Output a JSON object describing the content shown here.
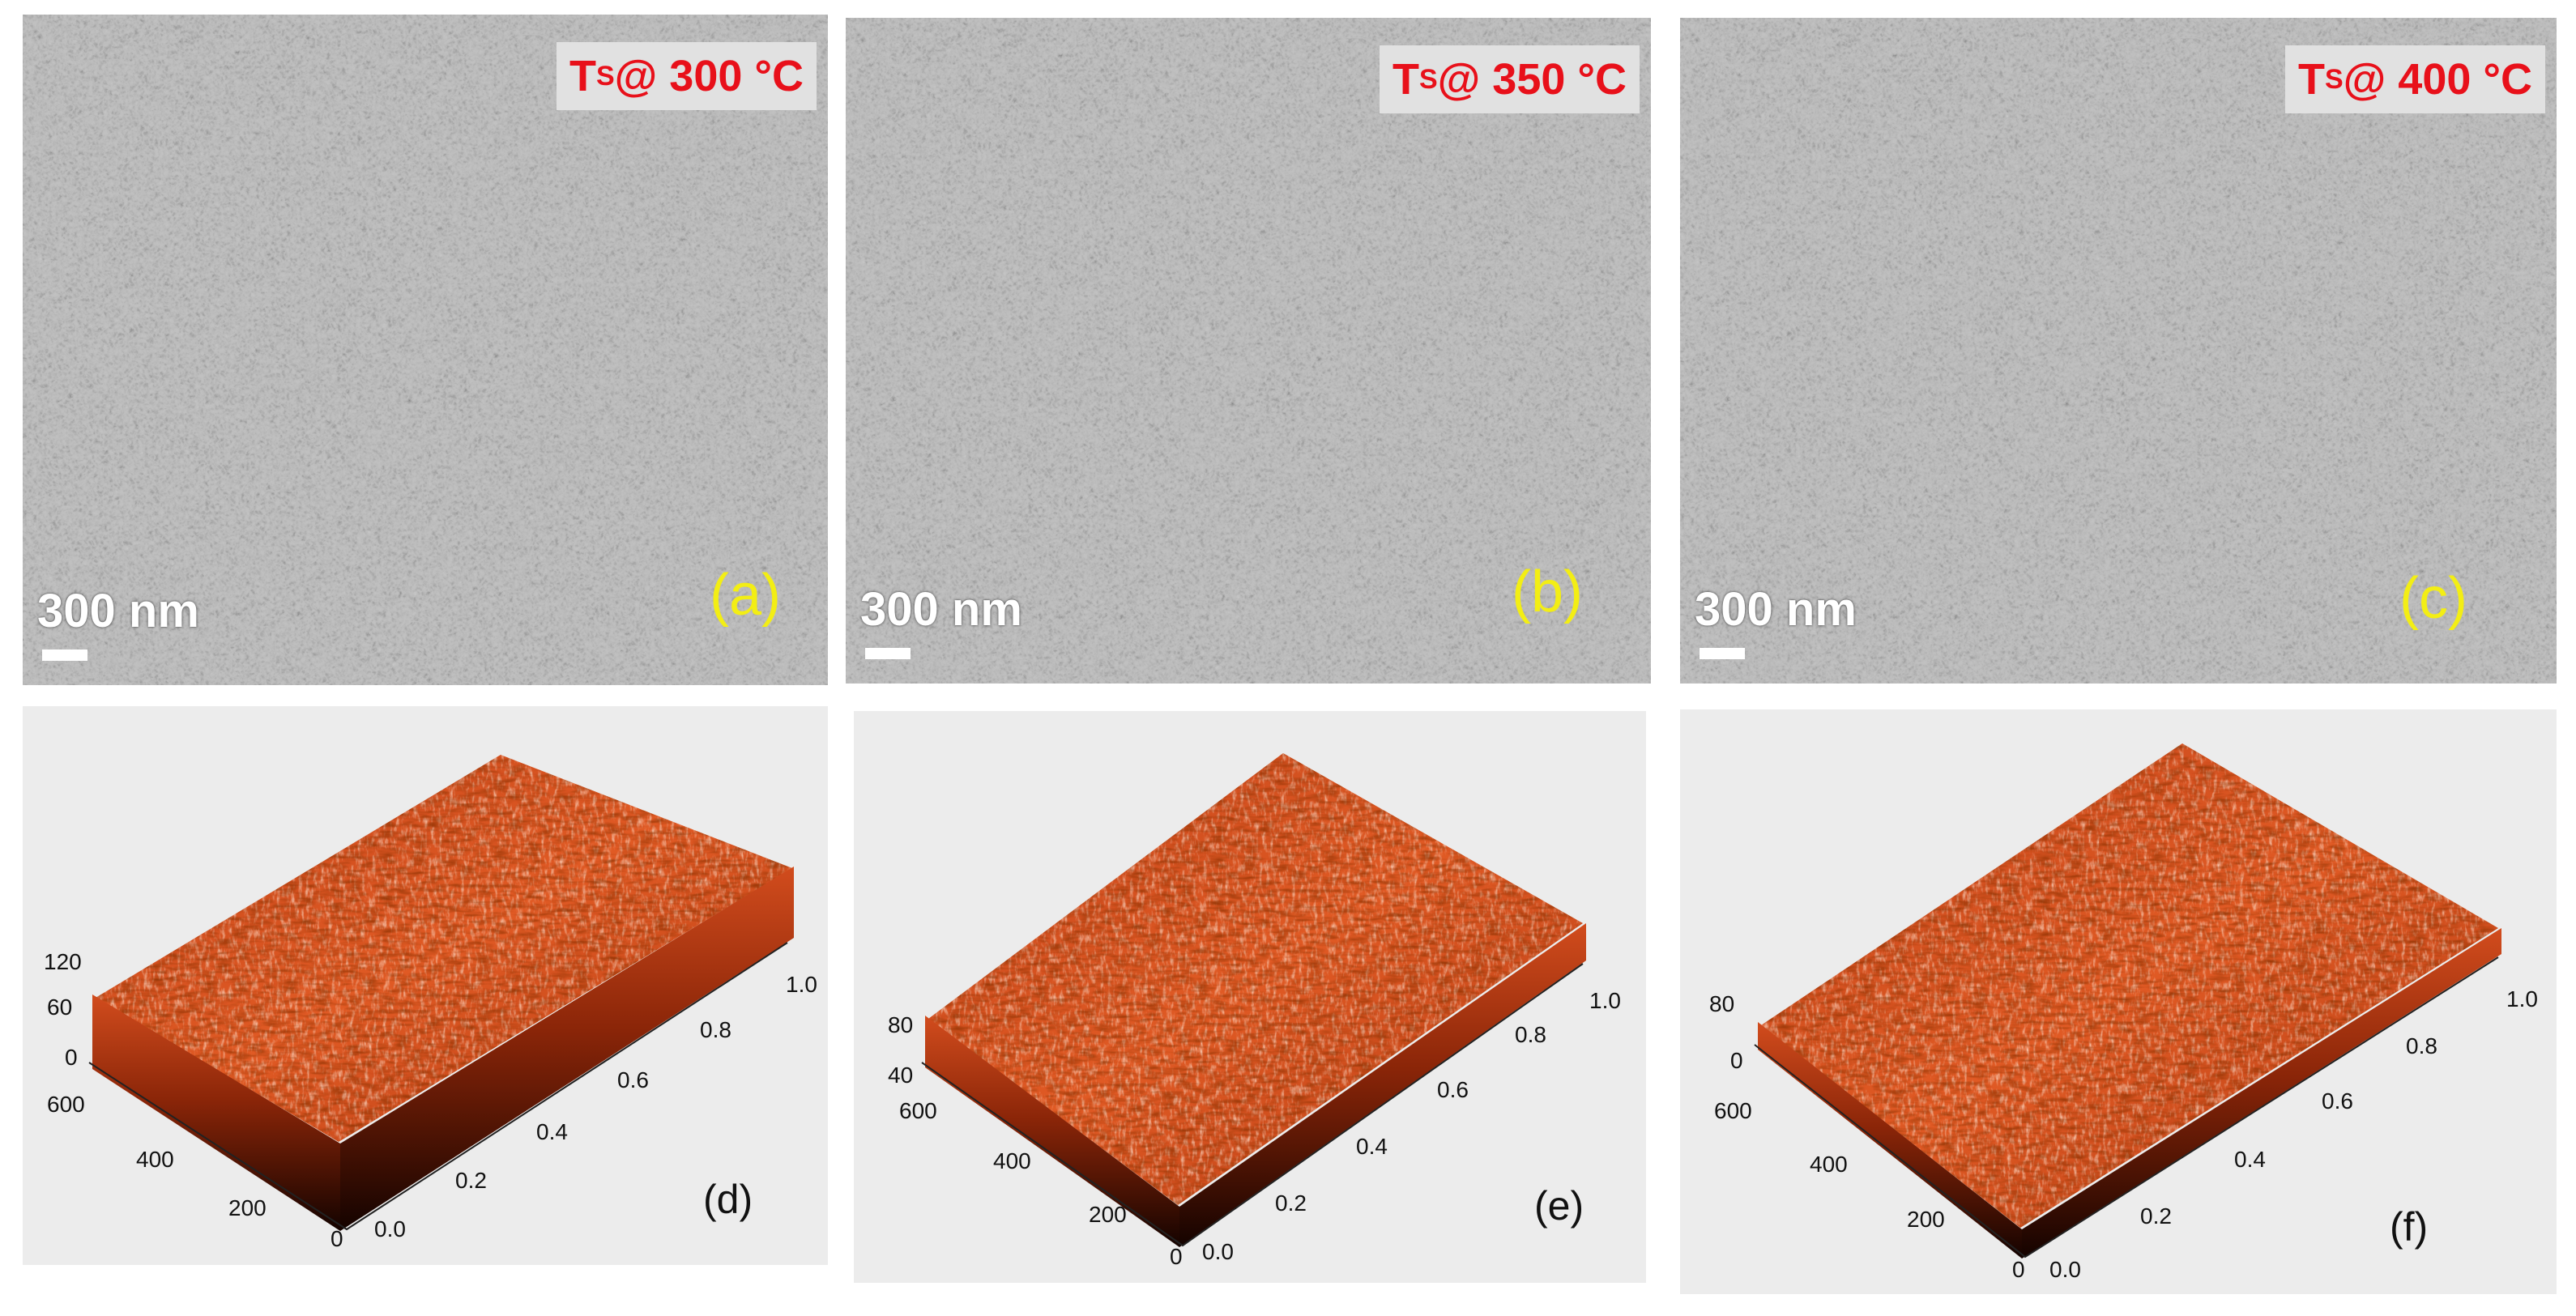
{
  "panels": {
    "a": {
      "temp_prefix": "T",
      "temp_sub": "S",
      "temp_suffix": " @ 300 °C",
      "scale": "300 nm",
      "label": "(a)"
    },
    "b": {
      "temp_prefix": "T",
      "temp_sub": "S",
      "temp_suffix": " @ 350 °C",
      "scale": "300 nm",
      "label": "(b)"
    },
    "c": {
      "temp_prefix": "T",
      "temp_sub": "S",
      "temp_suffix": " @ 400 °C",
      "scale": "300 nm",
      "label": "(c)"
    },
    "d": {
      "label": "(d)",
      "z_ticks": [
        "120",
        "60",
        "0"
      ],
      "y_ticks": [
        "600",
        "400",
        "200",
        "0"
      ],
      "x_ticks": [
        "0.0",
        "0.2",
        "0.4",
        "0.6",
        "0.8",
        "1.0"
      ]
    },
    "e": {
      "label": "(e)",
      "z_ticks": [
        "80",
        "40"
      ],
      "y_ticks": [
        "600",
        "400",
        "200",
        "0"
      ],
      "x_ticks": [
        "0.0",
        "0.2",
        "0.4",
        "0.6",
        "0.8",
        "1.0"
      ]
    },
    "f": {
      "label": "(f)",
      "z_ticks": [
        "80",
        "0"
      ],
      "y_ticks": [
        "600",
        "400",
        "200",
        "0"
      ],
      "x_ticks": [
        "0.0",
        "0.2",
        "0.4",
        "0.6",
        "0.8",
        "1.0"
      ]
    }
  },
  "colors": {
    "temp_text": "#e8101a",
    "panel_label": "#f3ee14",
    "afm_dark": "#3a0a00",
    "afm_mid": "#c0441a",
    "afm_light": "#ffe6d2"
  }
}
